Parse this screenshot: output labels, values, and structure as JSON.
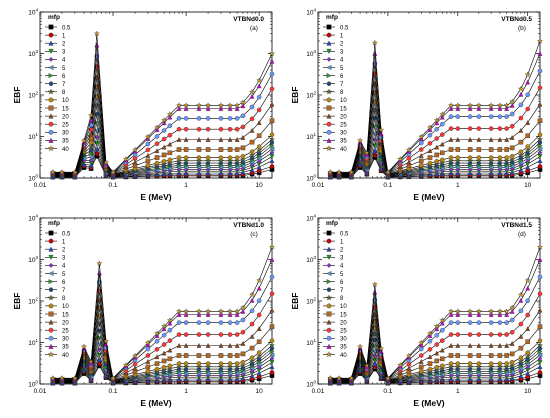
{
  "chart_data": [
    {
      "type": "line",
      "panel_label": "(a)",
      "sample": "VTBNd0.0",
      "xlabel": "E (MeV)",
      "ylabel": "EBF",
      "xscale": "log",
      "yscale": "log",
      "xlim": [
        0.01,
        15
      ],
      "ylim": [
        1,
        10000
      ],
      "x_ticks": [
        "0.01",
        "0.1",
        "1",
        "10"
      ],
      "y_ticks": [
        "10^0",
        "10^1",
        "10^2",
        "10^3",
        "10^4"
      ],
      "legend_title": "mfp",
      "legend_position": "top-left",
      "peak_energy": 0.06,
      "peak_height_40mfp": 3000,
      "energies": [
        0.015,
        0.02,
        0.03,
        0.04,
        0.05,
        0.06,
        0.08,
        0.1,
        0.15,
        0.2,
        0.3,
        0.4,
        0.5,
        0.6,
        0.8,
        1,
        1.5,
        2,
        3,
        4,
        5,
        6,
        8,
        10,
        15
      ],
      "series_mfp": [
        "0.5",
        "1",
        "2",
        "3",
        "4",
        "5",
        "6",
        "7",
        "8",
        "10",
        "15",
        "20",
        "25",
        "30",
        "35",
        "40"
      ],
      "series_end_values": [
        1.6,
        1.9,
        2.6,
        3.3,
        4.1,
        5,
        6,
        7.1,
        8.5,
        11,
        24,
        60,
        140,
        320,
        650,
        1000
      ]
    },
    {
      "type": "line",
      "panel_label": "(b)",
      "sample": "VTBNd0.5",
      "xlabel": "E (MeV)",
      "ylabel": "EBF",
      "xscale": "log",
      "yscale": "log",
      "xlim": [
        0.01,
        15
      ],
      "ylim": [
        1,
        10000
      ],
      "x_ticks": [
        "0.01",
        "0.1",
        "1",
        "10"
      ],
      "y_ticks": [
        "10^0",
        "10^1",
        "10^2",
        "10^3",
        "10^4"
      ],
      "legend_title": "mfp",
      "legend_position": "top-left",
      "peak_energy": 0.065,
      "peak_height_40mfp": 1800,
      "energies": [
        0.015,
        0.02,
        0.03,
        0.04,
        0.05,
        0.065,
        0.08,
        0.1,
        0.15,
        0.2,
        0.3,
        0.4,
        0.5,
        0.6,
        0.8,
        1,
        1.5,
        2,
        3,
        4,
        5,
        6,
        8,
        10,
        15
      ],
      "series_mfp": [
        "0.5",
        "1",
        "2",
        "3",
        "4",
        "5",
        "6",
        "7",
        "8",
        "10",
        "15",
        "20",
        "25",
        "30",
        "35",
        "40"
      ],
      "series_end_values": [
        1.6,
        1.9,
        2.6,
        3.3,
        4.1,
        5,
        6,
        7.1,
        8.5,
        11,
        24,
        60,
        150,
        380,
        1000,
        2000
      ]
    },
    {
      "type": "line",
      "panel_label": "(c)",
      "sample": "VTBNd1.0",
      "xlabel": "E (MeV)",
      "ylabel": "EBF",
      "xscale": "log",
      "yscale": "log",
      "xlim": [
        0.01,
        15
      ],
      "ylim": [
        1,
        10000
      ],
      "x_ticks": [
        "0.01",
        "0.1",
        "1",
        "10"
      ],
      "y_ticks": [
        "10^0",
        "10^1",
        "10^2",
        "10^3",
        "10^4"
      ],
      "legend_title": "mfp",
      "legend_position": "top-left",
      "peak_energy": 0.065,
      "peak_height_40mfp": 800,
      "energies": [
        0.015,
        0.02,
        0.03,
        0.04,
        0.05,
        0.065,
        0.08,
        0.1,
        0.15,
        0.2,
        0.3,
        0.4,
        0.5,
        0.6,
        0.8,
        1,
        1.5,
        2,
        3,
        4,
        5,
        6,
        8,
        10,
        15
      ],
      "series_mfp": [
        "0.5",
        "1",
        "2",
        "3",
        "4",
        "5",
        "6",
        "7",
        "8",
        "10",
        "15",
        "20",
        "25",
        "30",
        "35",
        "40"
      ],
      "series_end_values": [
        1.6,
        1.9,
        2.6,
        3.3,
        4.1,
        5,
        6,
        7.1,
        8.5,
        11,
        24,
        60,
        150,
        380,
        1000,
        2000
      ]
    },
    {
      "type": "line",
      "panel_label": "(d)",
      "sample": "VTBNd1.5",
      "xlabel": "E (MeV)",
      "ylabel": "EBF",
      "xscale": "log",
      "yscale": "log",
      "xlim": [
        0.01,
        15
      ],
      "ylim": [
        1,
        10000
      ],
      "x_ticks": [
        "0.01",
        "0.1",
        "1",
        "10"
      ],
      "y_ticks": [
        "10^0",
        "10^1",
        "10^2",
        "10^3",
        "10^4"
      ],
      "legend_title": "mfp",
      "legend_position": "top-left",
      "peak_energy": 0.065,
      "peak_height_40mfp": 250,
      "energies": [
        0.015,
        0.02,
        0.03,
        0.04,
        0.05,
        0.065,
        0.08,
        0.1,
        0.15,
        0.2,
        0.3,
        0.4,
        0.5,
        0.6,
        0.8,
        1,
        1.5,
        2,
        3,
        4,
        5,
        6,
        8,
        10,
        15
      ],
      "series_mfp": [
        "0.5",
        "1",
        "2",
        "3",
        "4",
        "5",
        "6",
        "7",
        "8",
        "10",
        "15",
        "20",
        "25",
        "30",
        "35",
        "40"
      ],
      "series_end_values": [
        1.6,
        1.9,
        2.6,
        3.3,
        4.1,
        5,
        6,
        7.1,
        8.5,
        11,
        24,
        60,
        150,
        380,
        1000,
        2000
      ]
    }
  ],
  "series_styles": [
    {
      "mfp": "0.5",
      "color": "#000000",
      "marker": "square"
    },
    {
      "mfp": "1",
      "color": "#cc0000",
      "marker": "circle"
    },
    {
      "mfp": "2",
      "color": "#2244cc",
      "marker": "triangle"
    },
    {
      "mfp": "3",
      "color": "#00a000",
      "marker": "triangle-down"
    },
    {
      "mfp": "4",
      "color": "#8833cc",
      "marker": "diamond"
    },
    {
      "mfp": "5",
      "color": "#4aa0e0",
      "marker": "triangle-left"
    },
    {
      "mfp": "6",
      "color": "#2a9a2a",
      "marker": "triangle-right"
    },
    {
      "mfp": "7",
      "color": "#1a4a80",
      "marker": "hexagon"
    },
    {
      "mfp": "8",
      "color": "#556b2f",
      "marker": "star"
    },
    {
      "mfp": "10",
      "color": "#b8860b",
      "marker": "circle"
    },
    {
      "mfp": "15",
      "color": "#b5651d",
      "marker": "square"
    },
    {
      "mfp": "20",
      "color": "#8b4513",
      "marker": "triangle"
    },
    {
      "mfp": "25",
      "color": "#ff3333",
      "marker": "circle"
    },
    {
      "mfp": "30",
      "color": "#6699ff",
      "marker": "circle"
    },
    {
      "mfp": "35",
      "color": "#cc00cc",
      "marker": "triangle"
    },
    {
      "mfp": "40",
      "color": "#d4a017",
      "marker": "star"
    }
  ]
}
